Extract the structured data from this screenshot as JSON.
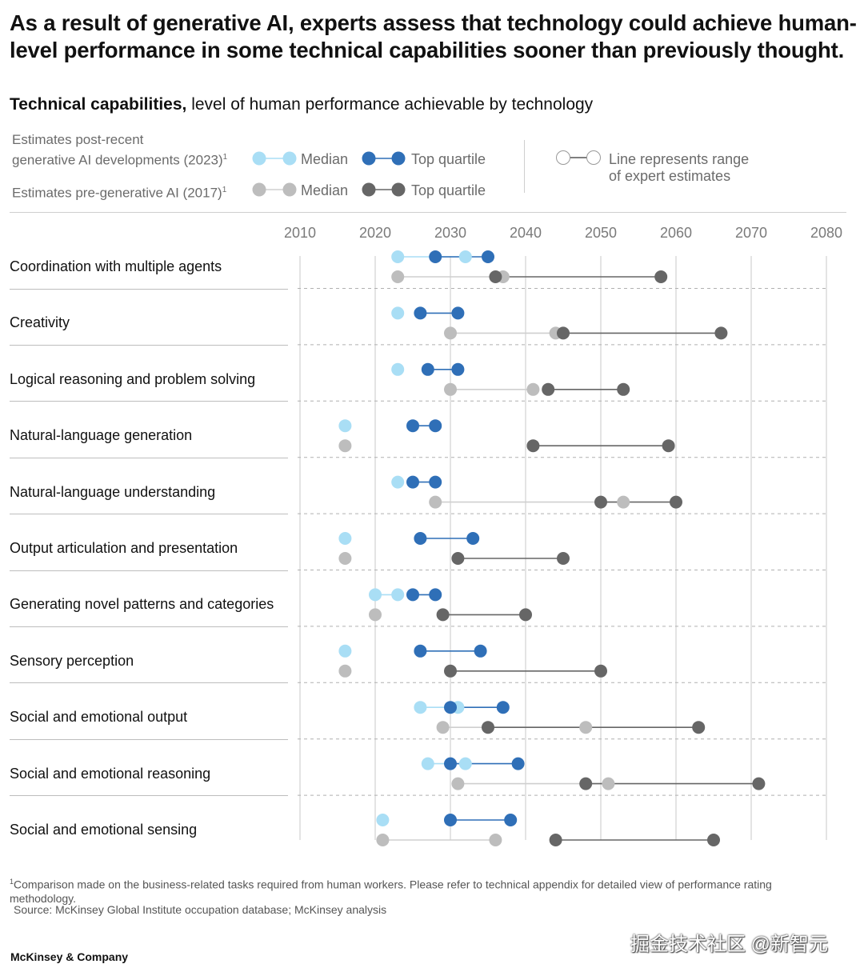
{
  "headline": "As a result of generative AI, experts assess that technology could achieve human-level performance in some technical capabilities sooner than previously thought.",
  "subtitle_bold": "Technical capabilities,",
  "subtitle_rest": " level of human performance achievable by technology",
  "legend": {
    "post_label_line1": "Estimates post-recent",
    "post_label_line2": "generative AI developments (2023)",
    "pre_label": "Estimates pre-generative AI (2017)",
    "footnote_mark": "1",
    "median": "Median",
    "top_quartile": "Top quartile",
    "range_line1": "Line represents range",
    "range_line2": "of expert estimates"
  },
  "colors": {
    "post_median": "#a9def5",
    "post_top": "#2f6fb7",
    "pre_median": "#bdbdbd",
    "pre_top": "#666666",
    "post_median_line": "#a9def5",
    "post_top_line": "#2f6fb7",
    "pre_median_line": "#cfcfcf",
    "pre_top_line": "#666666"
  },
  "chart_data": {
    "type": "dumbbell",
    "x_range": [
      2010,
      2080
    ],
    "x_ticks": [
      "2010",
      "2020",
      "2030",
      "2040",
      "2050",
      "2060",
      "2070",
      "2080"
    ],
    "series": [
      {
        "name": "Median",
        "key": "post_median"
      },
      {
        "name": "Top quartile",
        "key": "post_top"
      },
      {
        "name": "Median",
        "key": "pre_median"
      },
      {
        "name": "Top quartile",
        "key": "pre_top"
      }
    ],
    "rows": [
      {
        "label": "Coordination with multiple agents",
        "post_median": [
          2023,
          2032
        ],
        "post_top": [
          2028,
          2035
        ],
        "pre_median": [
          2023,
          2037
        ],
        "pre_top": [
          2036,
          2058
        ]
      },
      {
        "label": "Creativity",
        "post_median": [
          2023,
          2023
        ],
        "post_top": [
          2026,
          2031
        ],
        "pre_median": [
          2030,
          2044
        ],
        "pre_top": [
          2045,
          2066
        ]
      },
      {
        "label": "Logical reasoning and problem solving",
        "post_median": [
          2023,
          2023
        ],
        "post_top": [
          2027,
          2031
        ],
        "pre_median": [
          2030,
          2041
        ],
        "pre_top": [
          2043,
          2053
        ]
      },
      {
        "label": "Natural-language generation",
        "post_median": [
          2016,
          2016
        ],
        "post_top": [
          2025,
          2028
        ],
        "pre_median": [
          2016,
          2016
        ],
        "pre_top": [
          2041,
          2059
        ]
      },
      {
        "label": "Natural-language understanding",
        "post_median": [
          2023,
          2023
        ],
        "post_top": [
          2025,
          2028
        ],
        "pre_median": [
          2028,
          2053
        ],
        "pre_top": [
          2050,
          2060
        ]
      },
      {
        "label": "Output articulation and presentation",
        "post_median": [
          2016,
          2016
        ],
        "post_top": [
          2026,
          2033
        ],
        "pre_median": [
          2016,
          2016
        ],
        "pre_top": [
          2031,
          2045
        ]
      },
      {
        "label": "Generating novel patterns and categories",
        "post_median": [
          2020,
          2023
        ],
        "post_top": [
          2025,
          2028
        ],
        "pre_median": [
          2020,
          2020
        ],
        "pre_top": [
          2029,
          2040
        ]
      },
      {
        "label": "Sensory perception",
        "post_median": [
          2016,
          2016
        ],
        "post_top": [
          2026,
          2034
        ],
        "pre_median": [
          2016,
          2016
        ],
        "pre_top": [
          2030,
          2050
        ]
      },
      {
        "label": "Social and emotional output",
        "post_median": [
          2026,
          2031
        ],
        "post_top": [
          2030,
          2037
        ],
        "pre_median": [
          2029,
          2048
        ],
        "pre_top": [
          2035,
          2063
        ]
      },
      {
        "label": "Social and emotional reasoning",
        "post_median": [
          2027,
          2032
        ],
        "post_top": [
          2030,
          2039
        ],
        "pre_median": [
          2031,
          2051
        ],
        "pre_top": [
          2048,
          2071
        ]
      },
      {
        "label": "Social and emotional sensing",
        "post_median": [
          2021,
          2021
        ],
        "post_top": [
          2030,
          2038
        ],
        "pre_median": [
          2021,
          2036
        ],
        "pre_top": [
          2044,
          2065
        ]
      }
    ]
  },
  "footnote": "Comparison made on the business-related tasks required from human workers. Please refer to technical appendix for detailed view of performance rating methodology.",
  "source": "Source: McKinsey Global Institute occupation database; McKinsey analysis",
  "brand": "McKinsey & Company",
  "watermark": "掘金技术社区 @新智元"
}
